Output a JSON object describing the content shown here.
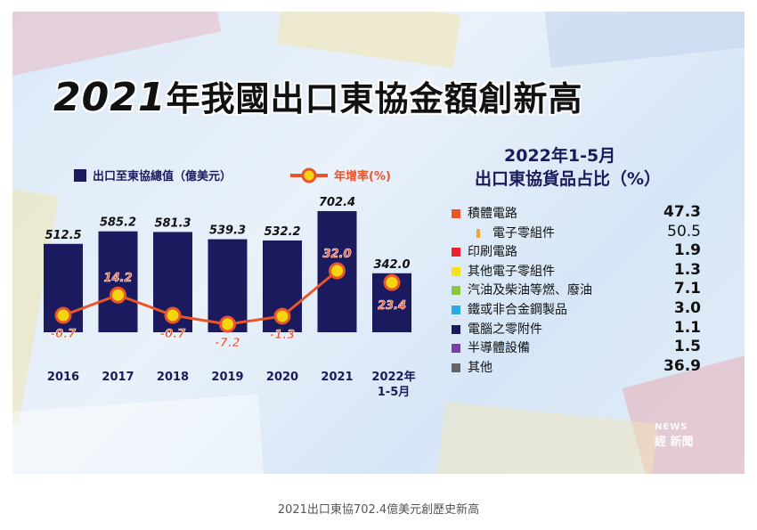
{
  "title": {
    "year": "2021",
    "text": "年我國出口東協金額創新高"
  },
  "legend": {
    "bar_label": "出口至東協總值（億美元）",
    "line_label": "年增率(%)"
  },
  "colors": {
    "bar": "#1c1a5e",
    "line": "#e8552b",
    "dot": "#f5d410",
    "bg": "#e6eff9"
  },
  "chart_data": {
    "type": "bar",
    "categories": [
      "2016",
      "2017",
      "2018",
      "2019",
      "2020",
      "2021",
      "2022年 1-5月"
    ],
    "series": [
      {
        "name": "出口至東協總值（億美元）",
        "type": "bar",
        "values": [
          512.5,
          585.2,
          581.3,
          539.3,
          532.2,
          702.4,
          342.0
        ],
        "labels": [
          "512.5",
          "585.2",
          "581.3",
          "539.3",
          "532.2",
          "702.4",
          "342.0"
        ]
      },
      {
        "name": "年增率(%)",
        "type": "line",
        "values": [
          -0.7,
          14.2,
          -0.7,
          -7.2,
          -1.3,
          32.0,
          23.4
        ],
        "labels": [
          "-0.7",
          "14.2",
          "-0.7",
          "-7.2",
          "-1.3",
          "32.0",
          "23.4"
        ]
      }
    ],
    "category_labels": [
      [
        "2016"
      ],
      [
        "2017"
      ],
      [
        "2018"
      ],
      [
        "2019"
      ],
      [
        "2020"
      ],
      [
        "2021"
      ],
      [
        "2022年",
        "1-5月"
      ]
    ]
  },
  "share": {
    "title_line1": "2022年1-5月",
    "title_line2": "出口東協貨品占比（%）",
    "items": [
      {
        "label": "積體電路",
        "value": "47.3",
        "color": "#e8552b",
        "sub": false
      },
      {
        "label": "電子零組件",
        "value": "50.5",
        "color": "#f4a62a",
        "sub": true
      },
      {
        "label": "印刷電路",
        "value": "1.9",
        "color": "#e8232b",
        "sub": false
      },
      {
        "label": "其他電子零組件",
        "value": "1.3",
        "color": "#f7e21a",
        "sub": false
      },
      {
        "label": "汽油及柴油等燃、廢油",
        "value": "7.1",
        "color": "#8cc63f",
        "sub": false
      },
      {
        "label": "鐵或非合金鋼製品",
        "value": "3.0",
        "color": "#29abe2",
        "sub": false
      },
      {
        "label": "電腦之零附件",
        "value": "1.1",
        "color": "#1c1a5e",
        "sub": false
      },
      {
        "label": "半導體設備",
        "value": "1.5",
        "color": "#7b3fa6",
        "sub": false
      },
      {
        "label": "其他",
        "value": "36.9",
        "color": "#666666",
        "sub": false
      }
    ]
  },
  "logo": {
    "line1": "NEWS",
    "line2": "經 新聞"
  },
  "caption": "2021出口東協702.4億美元創歷史新高"
}
